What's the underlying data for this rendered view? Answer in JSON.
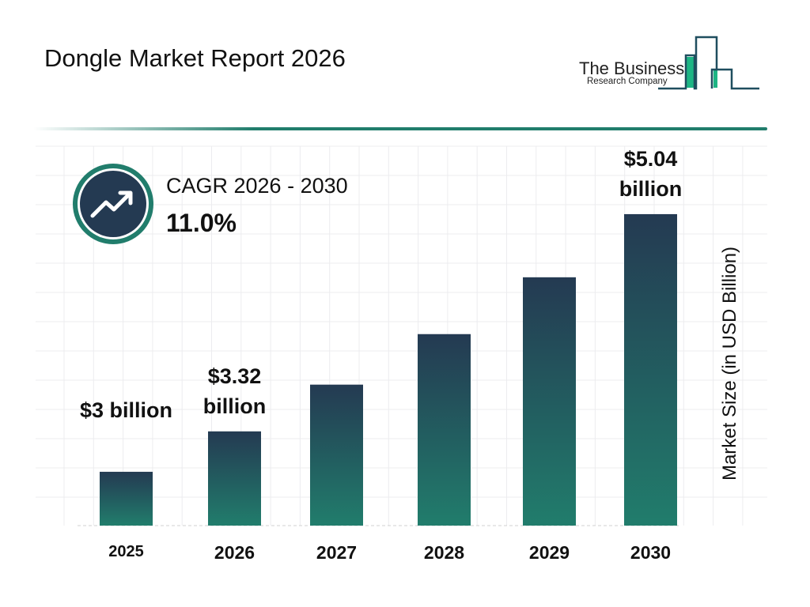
{
  "header": {
    "title": "Dongle Market Report 2026"
  },
  "logo": {
    "line1": "The Business",
    "line2": "Research Company"
  },
  "cagr": {
    "label": "CAGR 2026 - 2030",
    "value": "11.0%",
    "icon": "trend-up-arrow-icon"
  },
  "colors": {
    "bar_top": "#243a52",
    "bar_bottom": "#217d6c",
    "accent": "#217d6c",
    "logo_green": "#1db584",
    "logo_navy": "#1f4e5f"
  },
  "chart_data": {
    "type": "bar",
    "categories": [
      "2025",
      "2026",
      "2027",
      "2028",
      "2029",
      "2030"
    ],
    "values": [
      3.0,
      3.32,
      3.69,
      4.09,
      4.54,
      5.04
    ],
    "data_labels": [
      "$3 billion",
      "$3.32 billion",
      "",
      "",
      "",
      "$5.04 billion"
    ],
    "xlabel": "",
    "ylabel": "Market Size (in USD Billion)",
    "grid": true
  }
}
